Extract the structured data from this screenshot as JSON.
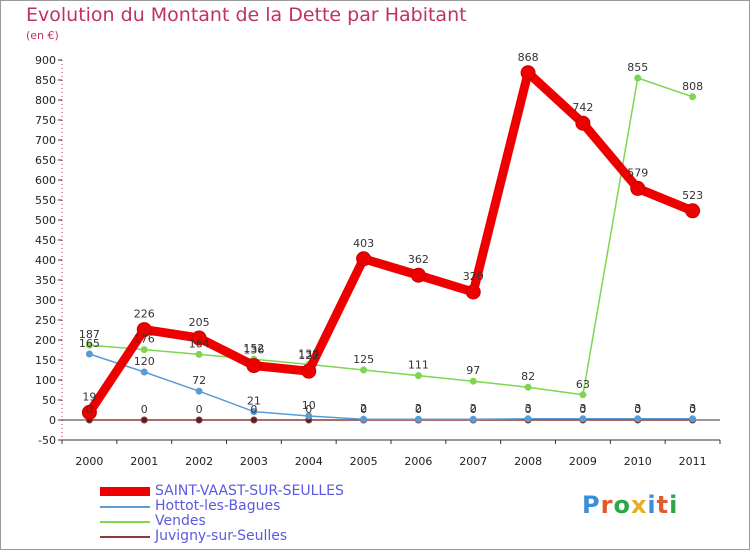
{
  "chart_data": {
    "type": "line",
    "title": "Evolution du Montant de la Dette par Habitant",
    "subtitle": "(en €)",
    "x": [
      "2000",
      "2001",
      "2002",
      "2003",
      "2004",
      "2005",
      "2006",
      "2007",
      "2008",
      "2009",
      "2010",
      "2011"
    ],
    "ylim": [
      -50,
      900
    ],
    "yticks": [
      -50,
      0,
      50,
      100,
      150,
      200,
      250,
      300,
      350,
      400,
      450,
      500,
      550,
      600,
      650,
      700,
      750,
      800,
      850,
      900
    ],
    "grid": false,
    "legend_position": "bottom-left",
    "series": [
      {
        "name": "SAINT-VAAST-SUR-SEULLES",
        "color": "#ee0000",
        "values": [
          19,
          226,
          205,
          136,
          122,
          403,
          362,
          320,
          868,
          742,
          579,
          523
        ],
        "labels": [
          "19",
          "226",
          "205",
          "136",
          "122",
          "403",
          "362",
          "320",
          "868",
          "742",
          "579",
          "523"
        ]
      },
      {
        "name": "Hottot-les-Bagues",
        "color": "#5b9bd5",
        "values": [
          165,
          120,
          72,
          21,
          10,
          2,
          2,
          2,
          3,
          3,
          3,
          3
        ],
        "labels": [
          "165",
          "120",
          "72",
          "21",
          "10",
          "2",
          "2",
          "2",
          "3",
          "3",
          "3",
          "3"
        ]
      },
      {
        "name": "Vendes",
        "color": "#7dd64e",
        "values": [
          187,
          176,
          164,
          152,
          139,
          125,
          111,
          97,
          82,
          63,
          855,
          808
        ],
        "labels": [
          "187",
          "176",
          "164",
          "152",
          "139",
          "125",
          "111",
          "97",
          "82",
          "63",
          "855",
          "808"
        ]
      },
      {
        "name": "Juvigny-sur-Seulles",
        "color": "#8b3a3a",
        "values": [
          0,
          0,
          0,
          0,
          0,
          0,
          0,
          0,
          0,
          0,
          0,
          0
        ],
        "labels": [
          "0",
          "0",
          "0",
          "0",
          "0",
          "0",
          "0",
          "0",
          "0",
          "0",
          "0",
          "0"
        ]
      }
    ]
  },
  "branding": {
    "logo_letters": [
      "P",
      "r",
      "o",
      "x",
      "i",
      "t",
      "i"
    ]
  }
}
